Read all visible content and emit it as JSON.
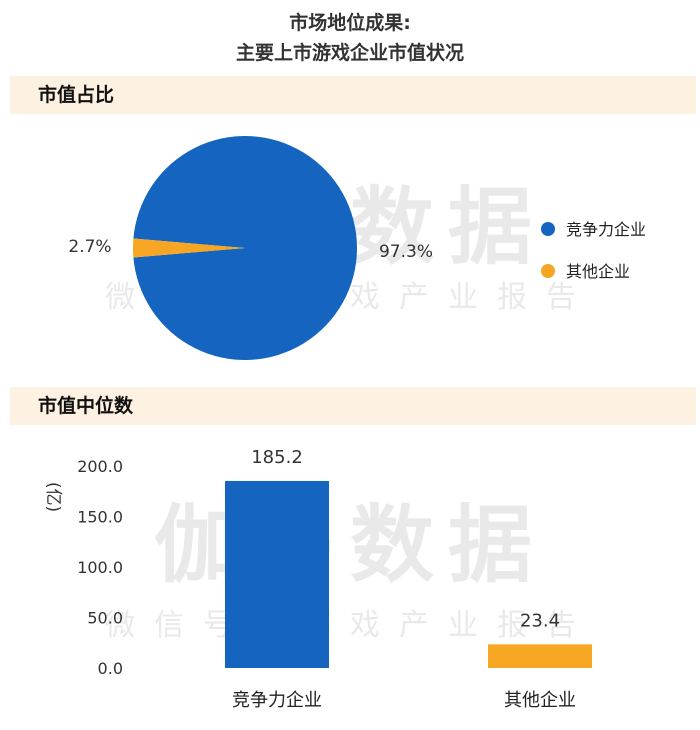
{
  "header": {
    "title_line1": "市场地位成果:",
    "title_line2": "主要上市游戏企业市值状况"
  },
  "watermark": {
    "main": "伽马数据",
    "sub": "微信号：游戏产业报告"
  },
  "sections": {
    "share_title": "市值占比",
    "median_title": "市值中位数"
  },
  "colors": {
    "blue": "#1565c0",
    "orange": "#f6a623",
    "section_bg": "#fdf1e1"
  },
  "chart_data": [
    {
      "type": "pie",
      "title": "市值占比",
      "slices": [
        {
          "label": "竞争力企业",
          "value": 97.3,
          "display": "97.3%",
          "color": "#1565c0"
        },
        {
          "label": "其他企业",
          "value": 2.7,
          "display": "2.7%",
          "color": "#f6a623"
        }
      ],
      "legend": [
        "竞争力企业",
        "其他企业"
      ],
      "legend_placement": "right"
    },
    {
      "type": "bar",
      "title": "市值中位数",
      "categories": [
        "竞争力企业",
        "其他企业"
      ],
      "values": [
        185.2,
        23.4
      ],
      "value_labels": [
        "185.2",
        "23.4"
      ],
      "colors": [
        "#1565c0",
        "#f6a623"
      ],
      "ylabel": "亿",
      "ylim": [
        0,
        200
      ],
      "yticks": [
        "200.0",
        "150.0",
        "100.0",
        "50.0",
        "0.0"
      ],
      "grid": false
    }
  ]
}
